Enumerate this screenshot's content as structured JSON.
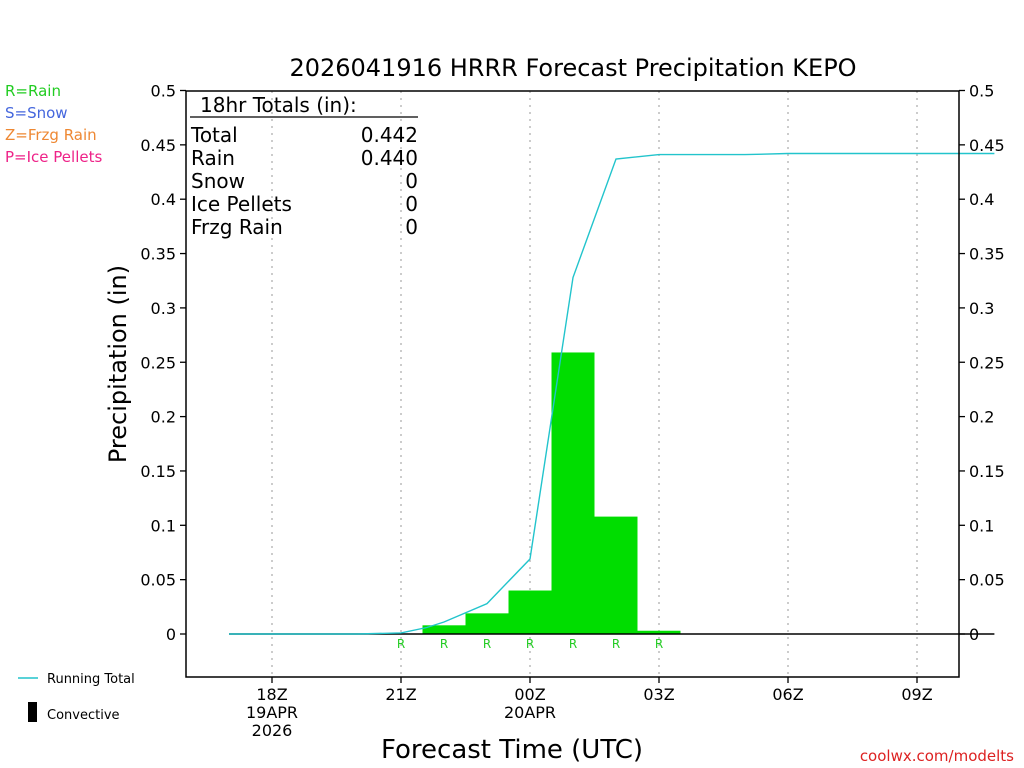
{
  "chart_data": {
    "type": "bar",
    "title": "2026041916 HRRR Forecast Precipitation KEPO",
    "xlabel": "Forecast Time (UTC)",
    "ylabel": "Precipitation (in)",
    "ylim": [
      -0.04,
      0.5
    ],
    "yticks": [
      "0.5",
      "0.45",
      "0.4",
      "0.35",
      "0.3",
      "0.25",
      "0.2",
      "0.15",
      "0.1",
      "0.05",
      "0"
    ],
    "xlim_hours_from_18z": [
      -1.2,
      16.8
    ],
    "xticks": [
      {
        "hour": 0,
        "lines": [
          "18Z",
          "19APR",
          "2026"
        ]
      },
      {
        "hour": 3,
        "lines": [
          "21Z"
        ]
      },
      {
        "hour": 6,
        "lines": [
          "00Z",
          "20APR"
        ]
      },
      {
        "hour": 9,
        "lines": [
          "03Z"
        ]
      },
      {
        "hour": 12,
        "lines": [
          "06Z"
        ]
      },
      {
        "hour": 15,
        "lines": [
          "09Z"
        ]
      }
    ],
    "hourly_precip": [
      {
        "hour_start": 3.5,
        "hour_end": 4.5,
        "value": 0.008,
        "type": "R"
      },
      {
        "hour_start": 4.5,
        "hour_end": 5.5,
        "value": 0.019,
        "type": "R"
      },
      {
        "hour_start": 5.5,
        "hour_end": 6.5,
        "value": 0.04,
        "type": "R"
      },
      {
        "hour_start": 6.5,
        "hour_end": 7.5,
        "value": 0.259,
        "type": "R"
      },
      {
        "hour_start": 7.5,
        "hour_end": 8.5,
        "value": 0.108,
        "type": "R"
      },
      {
        "hour_start": 8.5,
        "hour_end": 9.5,
        "value": 0.003,
        "type": "R"
      }
    ],
    "precip_type_markers": [
      {
        "hour": 3,
        "label": "R"
      },
      {
        "hour": 4,
        "label": "R"
      },
      {
        "hour": 5,
        "label": "R"
      },
      {
        "hour": 6,
        "label": "R"
      },
      {
        "hour": 7,
        "label": "R"
      },
      {
        "hour": 8,
        "label": "R"
      },
      {
        "hour": 9,
        "label": "R"
      }
    ],
    "running_total": {
      "hours": [
        -1,
        0,
        1,
        2,
        3,
        3.6,
        4,
        5,
        6,
        7,
        8,
        9,
        10,
        11,
        12,
        13,
        14,
        15,
        16,
        16.8
      ],
      "values": [
        0,
        0,
        0,
        0,
        0.001,
        0.006,
        0.011,
        0.028,
        0.069,
        0.328,
        0.437,
        0.441,
        0.441,
        0.441,
        0.442,
        0.442,
        0.442,
        0.442,
        0.442,
        0.442
      ]
    },
    "convective_baseline": {
      "hour_start": -1,
      "hour_end": 16.8,
      "value": 0
    },
    "totals_box": {
      "heading": "18hr Totals (in):",
      "rows": [
        {
          "label": "Total",
          "value": "0.442"
        },
        {
          "label": "Rain",
          "value": "0.440"
        },
        {
          "label": "Snow",
          "value": "0"
        },
        {
          "label": "Ice Pellets",
          "value": "0"
        },
        {
          "label": "Frzg Rain",
          "value": "0"
        }
      ]
    },
    "type_legend": [
      {
        "text": "R=Rain",
        "color": "#22cc22"
      },
      {
        "text": "S=Snow",
        "color": "#4466dd"
      },
      {
        "text": "Z=Frzg Rain",
        "color": "#ee8833"
      },
      {
        "text": "P=Ice Pellets",
        "color": "#ee2288"
      }
    ],
    "line_legend": [
      {
        "text": "Running Total",
        "color": "#22c4cc",
        "style": "line"
      },
      {
        "text": "Convective",
        "color": "#000000",
        "style": "block"
      }
    ],
    "credit": "coolwx.com/modelts",
    "colors": {
      "rain_bar": "#00dd00",
      "running_total": "#22c4cc",
      "marker": "#22cc22",
      "credit": "#dd2222",
      "axis": "#000000",
      "grid": "#aaaaaa"
    }
  }
}
